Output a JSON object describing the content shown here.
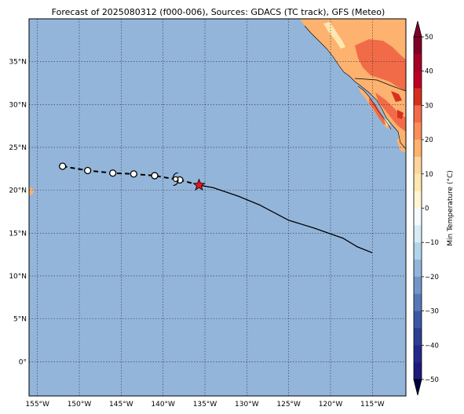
{
  "title": "Forecast of 2025080312 (f000-006), Sources: GDACS (TC track), GFS (Meteo)",
  "map": {
    "lon_range": [
      -156,
      -111
    ],
    "lat_range": [
      -4,
      40
    ],
    "lon_ticks": [
      {
        "value": -155,
        "label": "155°W"
      },
      {
        "value": -150,
        "label": "150°W"
      },
      {
        "value": -145,
        "label": "145°W"
      },
      {
        "value": -140,
        "label": "140°W"
      },
      {
        "value": -135,
        "label": "135°W"
      },
      {
        "value": -130,
        "label": "130°W"
      },
      {
        "value": -125,
        "label": "125°W"
      },
      {
        "value": -120,
        "label": "120°W"
      },
      {
        "value": -115,
        "label": "115°W"
      }
    ],
    "lat_ticks": [
      {
        "value": 0,
        "label": "0°"
      },
      {
        "value": 5,
        "label": "5°N"
      },
      {
        "value": 10,
        "label": "10°N"
      },
      {
        "value": 15,
        "label": "15°N"
      },
      {
        "value": 20,
        "label": "20°N"
      },
      {
        "value": 25,
        "label": "25°N"
      },
      {
        "value": 30,
        "label": "30°N"
      },
      {
        "value": 35,
        "label": "35°N"
      }
    ],
    "gridlines": true,
    "colors": {
      "ocean": "#93b5da",
      "land_warm": "#fdb26f",
      "land_hot": "#f26b48",
      "land_very_hot": "#d7301f",
      "land_mild": "#fee7ae",
      "track_past": "#000000",
      "current_marker": "#e3161c"
    }
  },
  "track": {
    "past": [
      {
        "lon": -152.0,
        "lat": 22.8
      },
      {
        "lon": -149.0,
        "lat": 22.3
      },
      {
        "lon": -146.0,
        "lat": 22.0
      },
      {
        "lon": -143.5,
        "lat": 21.9
      },
      {
        "lon": -141.0,
        "lat": 21.7
      },
      {
        "lon": -138.0,
        "lat": 21.2
      }
    ],
    "current": {
      "lon": -135.7,
      "lat": 20.6
    },
    "forecast": [
      {
        "lon": -135.7,
        "lat": 20.6
      },
      {
        "lon": -134.0,
        "lat": 20.3
      },
      {
        "lon": -131.0,
        "lat": 19.3
      },
      {
        "lon": -128.5,
        "lat": 18.3
      },
      {
        "lon": -125.0,
        "lat": 16.5
      },
      {
        "lon": -122.0,
        "lat": 15.6
      },
      {
        "lon": -118.5,
        "lat": 14.4
      },
      {
        "lon": -116.8,
        "lat": 13.4
      },
      {
        "lon": -115.0,
        "lat": 12.7
      }
    ],
    "storm_symbol_lon": -138.5,
    "storm_symbol_lat": 21.3
  },
  "colorbar": {
    "label": "Min Temperature (°C)",
    "ticks": [
      "50",
      "40",
      "30",
      "20",
      "10",
      "0",
      "−10",
      "−20",
      "−30",
      "−40",
      "−50"
    ],
    "colors": [
      "#800026",
      "#a50026",
      "#bd0026",
      "#d7301f",
      "#f26b48",
      "#fc8d59",
      "#fdb26f",
      "#fdd49e",
      "#fee7ae",
      "#fff6d5",
      "#f4fbfd",
      "#d5ecf5",
      "#b0d5ea",
      "#93b5da",
      "#7196c8",
      "#5778b8",
      "#3e57a5",
      "#2d3e94",
      "#24288a",
      "#1d1a7a"
    ]
  }
}
